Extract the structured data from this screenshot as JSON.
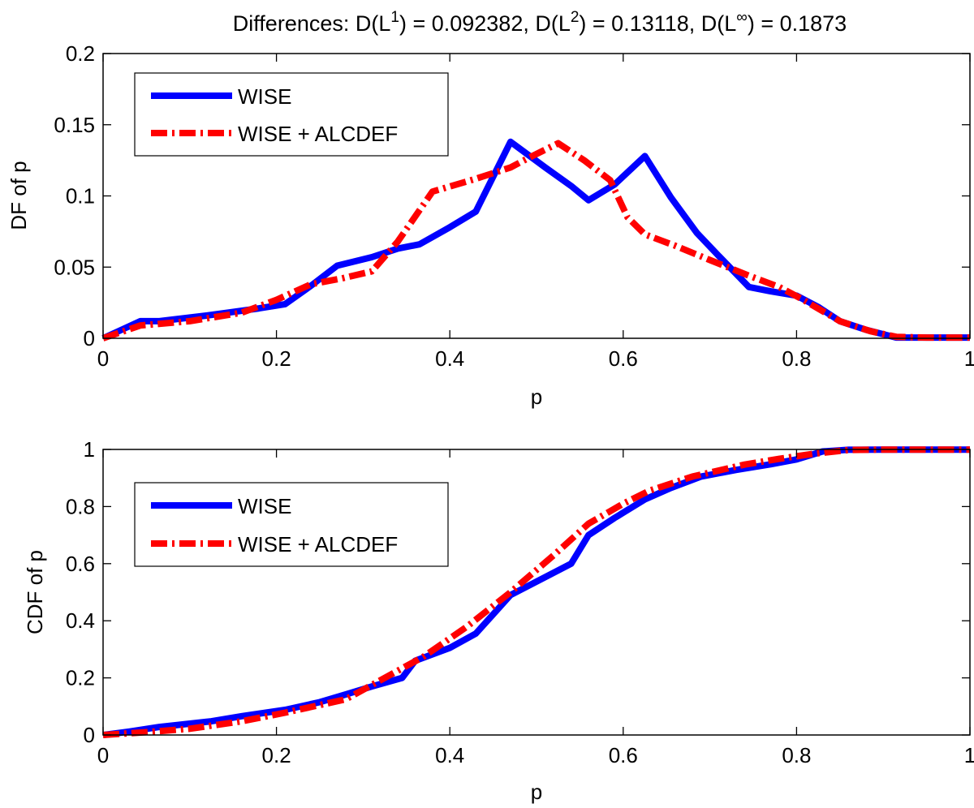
{
  "title": {
    "prefix": "Differences: D(L",
    "l1_sup": "1",
    "l1_value": ") = 0.092382, D(L",
    "l2_sup": "2",
    "l2_value": ") = 0.13118, D(L",
    "linf_sup": "∞",
    "linf_value": ") = 0.1873"
  },
  "colors": {
    "wise": "#0000ff",
    "wise_alcdef": "#ff0000"
  },
  "chart_data": [
    {
      "type": "line",
      "xlabel": "p",
      "ylabel": "DF of p",
      "xlim": [
        0,
        1
      ],
      "ylim": [
        0,
        0.2
      ],
      "xticks": [
        0,
        0.2,
        0.4,
        0.6,
        0.8,
        1
      ],
      "xtick_labels": [
        "0",
        "0.2",
        "0.4",
        "0.6",
        "0.8",
        "1"
      ],
      "yticks": [
        0,
        0.05,
        0.1,
        0.15,
        0.2
      ],
      "ytick_labels": [
        "0",
        "0.05",
        "0.1",
        "0.15",
        "0.2"
      ],
      "grid": false,
      "legend_position": "top-left",
      "series": [
        {
          "name": "WISE",
          "style": "solid",
          "x": [
            0,
            0.043,
            0.065,
            0.12,
            0.18,
            0.21,
            0.24,
            0.27,
            0.31,
            0.34,
            0.365,
            0.4,
            0.43,
            0.47,
            0.51,
            0.54,
            0.56,
            0.59,
            0.625,
            0.655,
            0.685,
            0.71,
            0.745,
            0.77,
            0.8,
            0.825,
            0.85,
            0.88,
            0.915,
            0.95,
            1.0
          ],
          "y": [
            0,
            0.012,
            0.012,
            0.016,
            0.021,
            0.024,
            0.037,
            0.051,
            0.057,
            0.063,
            0.066,
            0.078,
            0.089,
            0.138,
            0.12,
            0.107,
            0.097,
            0.108,
            0.128,
            0.099,
            0.074,
            0.058,
            0.036,
            0.033,
            0.03,
            0.022,
            0.012,
            0.006,
            0.0005,
            0.0005,
            0.0005
          ]
        },
        {
          "name": "WISE + ALCDEF",
          "style": "dashdot",
          "x": [
            0,
            0.043,
            0.1,
            0.16,
            0.2,
            0.24,
            0.275,
            0.31,
            0.34,
            0.38,
            0.43,
            0.47,
            0.495,
            0.525,
            0.555,
            0.585,
            0.605,
            0.625,
            0.66,
            0.7,
            0.745,
            0.78,
            0.805,
            0.85,
            0.885,
            0.915,
            0.95,
            1.0
          ],
          "y": [
            0,
            0.009,
            0.012,
            0.018,
            0.027,
            0.038,
            0.042,
            0.047,
            0.068,
            0.103,
            0.112,
            0.12,
            0.128,
            0.137,
            0.125,
            0.111,
            0.085,
            0.073,
            0.065,
            0.055,
            0.044,
            0.036,
            0.028,
            0.012,
            0.005,
            0.001,
            0.0005,
            0.0005
          ]
        }
      ]
    },
    {
      "type": "line",
      "xlabel": "p",
      "ylabel": "CDF of p",
      "xlim": [
        0,
        1
      ],
      "ylim": [
        0,
        1
      ],
      "xticks": [
        0,
        0.2,
        0.4,
        0.6,
        0.8,
        1
      ],
      "xtick_labels": [
        "0",
        "0.2",
        "0.4",
        "0.6",
        "0.8",
        "1"
      ],
      "yticks": [
        0,
        0.2,
        0.4,
        0.6,
        0.8,
        1
      ],
      "ytick_labels": [
        "0",
        "0.2",
        "0.4",
        "0.6",
        "0.8",
        "1"
      ],
      "grid": false,
      "legend_position": "top-left",
      "series": [
        {
          "name": "WISE",
          "style": "solid",
          "x": [
            0,
            0.03,
            0.065,
            0.125,
            0.16,
            0.21,
            0.25,
            0.28,
            0.31,
            0.345,
            0.36,
            0.4,
            0.43,
            0.47,
            0.505,
            0.54,
            0.56,
            0.59,
            0.625,
            0.655,
            0.69,
            0.73,
            0.77,
            0.8,
            0.83,
            0.86,
            0.9,
            0.95,
            1.0
          ],
          "y": [
            0,
            0.012,
            0.028,
            0.048,
            0.066,
            0.088,
            0.115,
            0.142,
            0.17,
            0.2,
            0.26,
            0.305,
            0.355,
            0.49,
            0.545,
            0.6,
            0.7,
            0.76,
            0.825,
            0.865,
            0.905,
            0.928,
            0.948,
            0.965,
            0.993,
            0.999,
            0.9995,
            0.9995,
            0.9995
          ]
        },
        {
          "name": "WISE + ALCDEF",
          "style": "dashdot",
          "x": [
            0,
            0.05,
            0.1,
            0.16,
            0.21,
            0.28,
            0.34,
            0.37,
            0.42,
            0.47,
            0.52,
            0.56,
            0.6,
            0.63,
            0.68,
            0.74,
            0.78,
            0.82,
            0.86,
            0.9,
            0.95,
            1.0
          ],
          "y": [
            0,
            0.01,
            0.022,
            0.048,
            0.078,
            0.125,
            0.225,
            0.275,
            0.38,
            0.5,
            0.63,
            0.74,
            0.81,
            0.855,
            0.905,
            0.947,
            0.967,
            0.985,
            0.998,
            0.9995,
            0.9995,
            0.9995
          ]
        }
      ]
    }
  ]
}
